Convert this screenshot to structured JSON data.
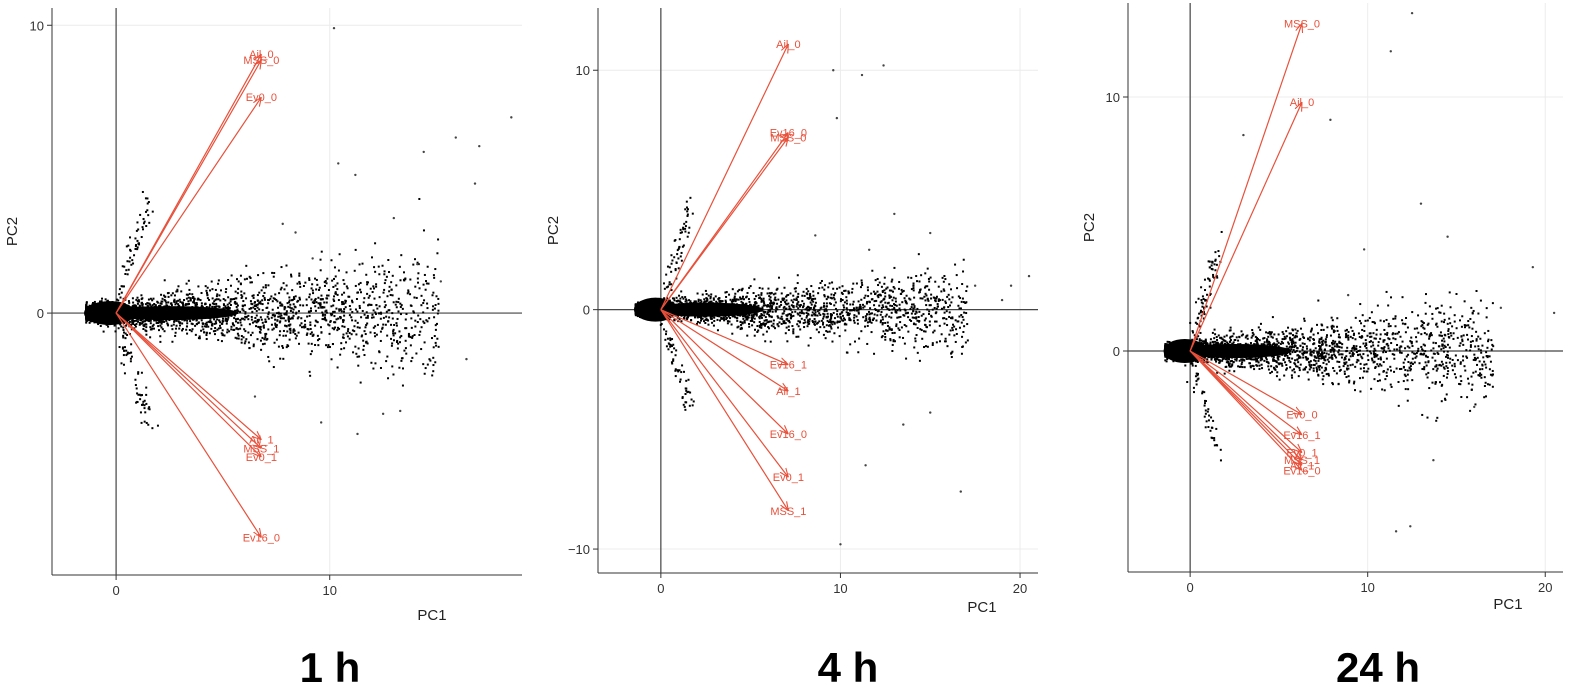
{
  "colors": {
    "arrow": "#e8503a",
    "points": "#000000",
    "frame": "#333333",
    "grid": "#ececec"
  },
  "chart_data": [
    {
      "type": "scatter",
      "caption": "1 h",
      "xlabel": "PC1",
      "ylabel": "PC2",
      "xlim": [
        -3,
        19
      ],
      "ylim": [
        -9.1,
        10.6
      ],
      "xticks": [
        0,
        10
      ],
      "yticks": [
        0,
        10
      ],
      "x_tick_labels": [
        "0",
        "10"
      ],
      "y_tick_labels": [
        "0",
        "10"
      ],
      "point_spread": 1.0,
      "arrows": [
        {
          "label": "Ail_0",
          "x": 6.8,
          "y": 9.0
        },
        {
          "label": "MSS_0",
          "x": 6.8,
          "y": 8.8
        },
        {
          "label": "Ev0_0",
          "x": 6.8,
          "y": 7.5
        },
        {
          "label": "Ail_1",
          "x": 6.8,
          "y": -4.4
        },
        {
          "label": "MSS_1",
          "x": 6.8,
          "y": -4.7
        },
        {
          "label": "Ev0_1",
          "x": 6.8,
          "y": -5.0
        },
        {
          "label": "Ev16_0",
          "x": 6.8,
          "y": -7.8
        }
      ],
      "arrow_label_text": [
        "Ail_0",
        "MSS_0",
        "Ev0_0",
        "Ail_1",
        "MSS_1",
        "Ev0_1",
        "Ev16_0"
      ],
      "outliers": [
        [
          10.2,
          9.9
        ],
        [
          18.5,
          6.8
        ],
        [
          17.0,
          5.8
        ],
        [
          15.9,
          6.1
        ],
        [
          14.4,
          5.6
        ],
        [
          16.8,
          4.5
        ],
        [
          13.0,
          3.3
        ],
        [
          10.4,
          5.2
        ],
        [
          11.2,
          4.8
        ],
        [
          15.2,
          1.1
        ],
        [
          8.4,
          2.8
        ],
        [
          12.5,
          -3.5
        ],
        [
          13.3,
          -3.4
        ],
        [
          11.3,
          -4.2
        ],
        [
          7.8,
          3.1
        ],
        [
          9.2,
          1.9
        ],
        [
          14.1,
          1.7
        ],
        [
          6.5,
          -2.9
        ],
        [
          9.6,
          -3.8
        ],
        [
          16.4,
          -1.6
        ]
      ]
    },
    {
      "type": "scatter",
      "caption": "4 h",
      "xlabel": "PC1",
      "ylabel": "PC2",
      "xlim": [
        -3.5,
        21
      ],
      "ylim": [
        -11,
        12.6
      ],
      "xticks": [
        0,
        10,
        20
      ],
      "yticks": [
        -10,
        0,
        10
      ],
      "x_tick_labels": [
        "0",
        "10",
        "20"
      ],
      "y_tick_labels": [
        "−10",
        "0",
        "10"
      ],
      "point_spread": 0.8,
      "arrows": [
        {
          "label": "Ail_0",
          "x": 7.1,
          "y": 11.1
        },
        {
          "label": "Ev16_0",
          "x": 7.1,
          "y": 7.4
        },
        {
          "label": "MSS_0",
          "x": 7.1,
          "y": 7.2
        },
        {
          "label": "Ev16_1",
          "x": 7.1,
          "y": -2.3
        },
        {
          "label": "Ail_1",
          "x": 7.1,
          "y": -3.4
        },
        {
          "label": "Ev16_0",
          "x": 7.1,
          "y": -5.2
        },
        {
          "label": "Ev0_1",
          "x": 7.1,
          "y": -7.0
        },
        {
          "label": "MSS_1",
          "x": 7.1,
          "y": -8.4
        }
      ],
      "arrow_label_text": [
        "Ail_0",
        "Ev16_0",
        "MSS_0",
        "Ev16_1",
        "Ail_1",
        "Ev16_0",
        "Ev0_1",
        "MSS_1"
      ],
      "outliers": [
        [
          9.6,
          10.0
        ],
        [
          12.4,
          10.2
        ],
        [
          11.2,
          9.8
        ],
        [
          9.8,
          8.0
        ],
        [
          13.0,
          4.0
        ],
        [
          15.0,
          3.2
        ],
        [
          17.5,
          1.0
        ],
        [
          19.0,
          0.4
        ],
        [
          20.5,
          1.4
        ],
        [
          16.7,
          -7.6
        ],
        [
          10.0,
          -9.8
        ],
        [
          15.0,
          -4.3
        ],
        [
          11.4,
          -6.5
        ],
        [
          19.5,
          1.0
        ],
        [
          13.5,
          -4.8
        ],
        [
          8.6,
          3.1
        ],
        [
          11.6,
          2.5
        ]
      ]
    },
    {
      "type": "scatter",
      "caption": "24 h",
      "xlabel": "PC1",
      "ylabel": "PC2",
      "xlim": [
        -3.5,
        21
      ],
      "ylim": [
        -8.7,
        13.7
      ],
      "xticks": [
        0,
        10,
        20
      ],
      "yticks": [
        0,
        10
      ],
      "x_tick_labels": [
        "0",
        "10",
        "20"
      ],
      "y_tick_labels": [
        "0",
        "10"
      ],
      "point_spread": 0.9,
      "arrows": [
        {
          "label": "MSS_0",
          "x": 6.3,
          "y": 12.9
        },
        {
          "label": "Ail_0",
          "x": 6.3,
          "y": 9.8
        },
        {
          "label": "Ev0_0",
          "x": 6.3,
          "y": -2.5
        },
        {
          "label": "Ev16_1",
          "x": 6.3,
          "y": -3.3
        },
        {
          "label": "Ev0_1",
          "x": 6.3,
          "y": -4.0
        },
        {
          "label": "MSS_1",
          "x": 6.3,
          "y": -4.3
        },
        {
          "label": "Ail_1",
          "x": 6.3,
          "y": -4.5
        },
        {
          "label": "Ev16_0",
          "x": 6.3,
          "y": -4.7
        }
      ],
      "arrow_label_text": [
        "MSS_0",
        "Ail_0",
        "Ev0_0",
        "Ev16_1",
        "Ev0_1",
        "MSS_1",
        "Ail_1",
        "Ev16_0"
      ],
      "outliers": [
        [
          11.3,
          11.8
        ],
        [
          12.5,
          13.3
        ],
        [
          7.9,
          9.1
        ],
        [
          3.0,
          8.5
        ],
        [
          13.0,
          5.8
        ],
        [
          14.5,
          4.5
        ],
        [
          19.3,
          3.3
        ],
        [
          20.5,
          1.5
        ],
        [
          13.7,
          -4.3
        ],
        [
          12.4,
          -6.9
        ],
        [
          11.6,
          -7.1
        ],
        [
          9.8,
          4.0
        ],
        [
          16.0,
          -2.2
        ],
        [
          8.9,
          2.2
        ],
        [
          17.5,
          1.7
        ]
      ]
    }
  ]
}
